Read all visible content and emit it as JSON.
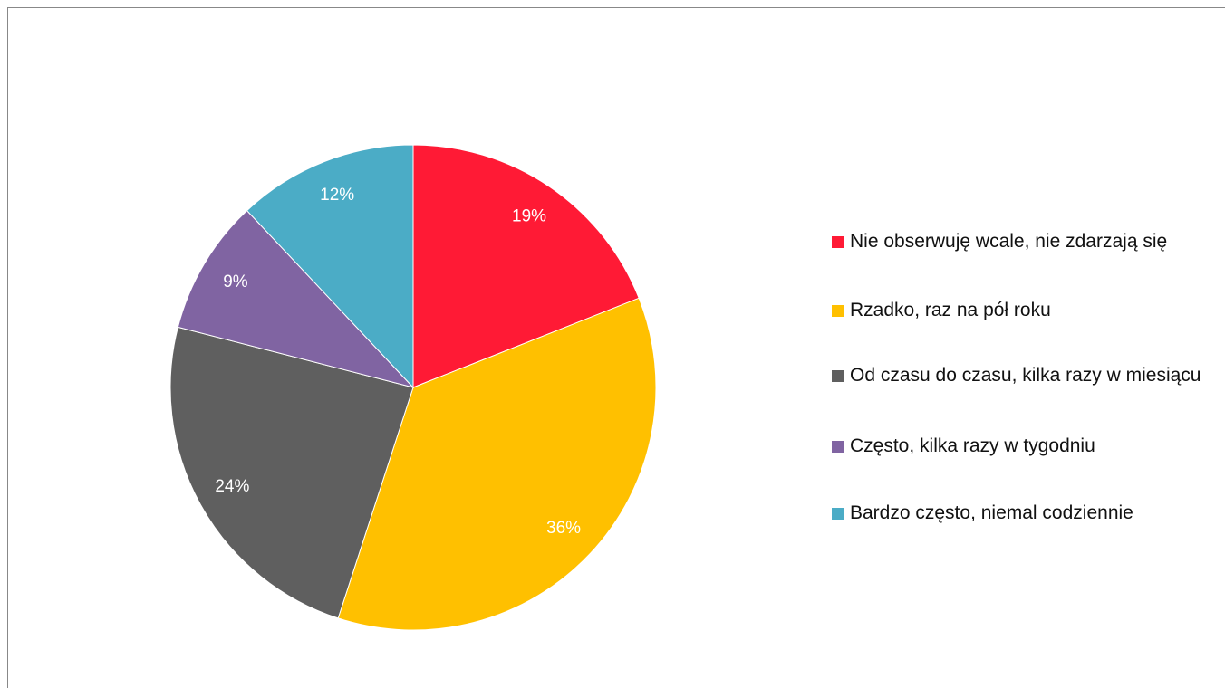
{
  "chart_data": {
    "type": "pie",
    "categories": [
      "Nie obserwuję wcale, nie zdarzają się",
      "Rzadko, raz na pół roku",
      "Od czasu do czasu, kilka razy w miesiącu",
      "Często, kilka razy w tygodniu",
      "Bardzo często, niemal codziennie"
    ],
    "values": [
      19,
      36,
      24,
      9,
      12
    ],
    "value_labels": [
      "19%",
      "36%",
      "24%",
      "9%",
      "12%"
    ],
    "colors": [
      "#ff1a35",
      "#ffc000",
      "#5f5f5f",
      "#8064a2",
      "#4bacc6"
    ],
    "legend": "right"
  }
}
